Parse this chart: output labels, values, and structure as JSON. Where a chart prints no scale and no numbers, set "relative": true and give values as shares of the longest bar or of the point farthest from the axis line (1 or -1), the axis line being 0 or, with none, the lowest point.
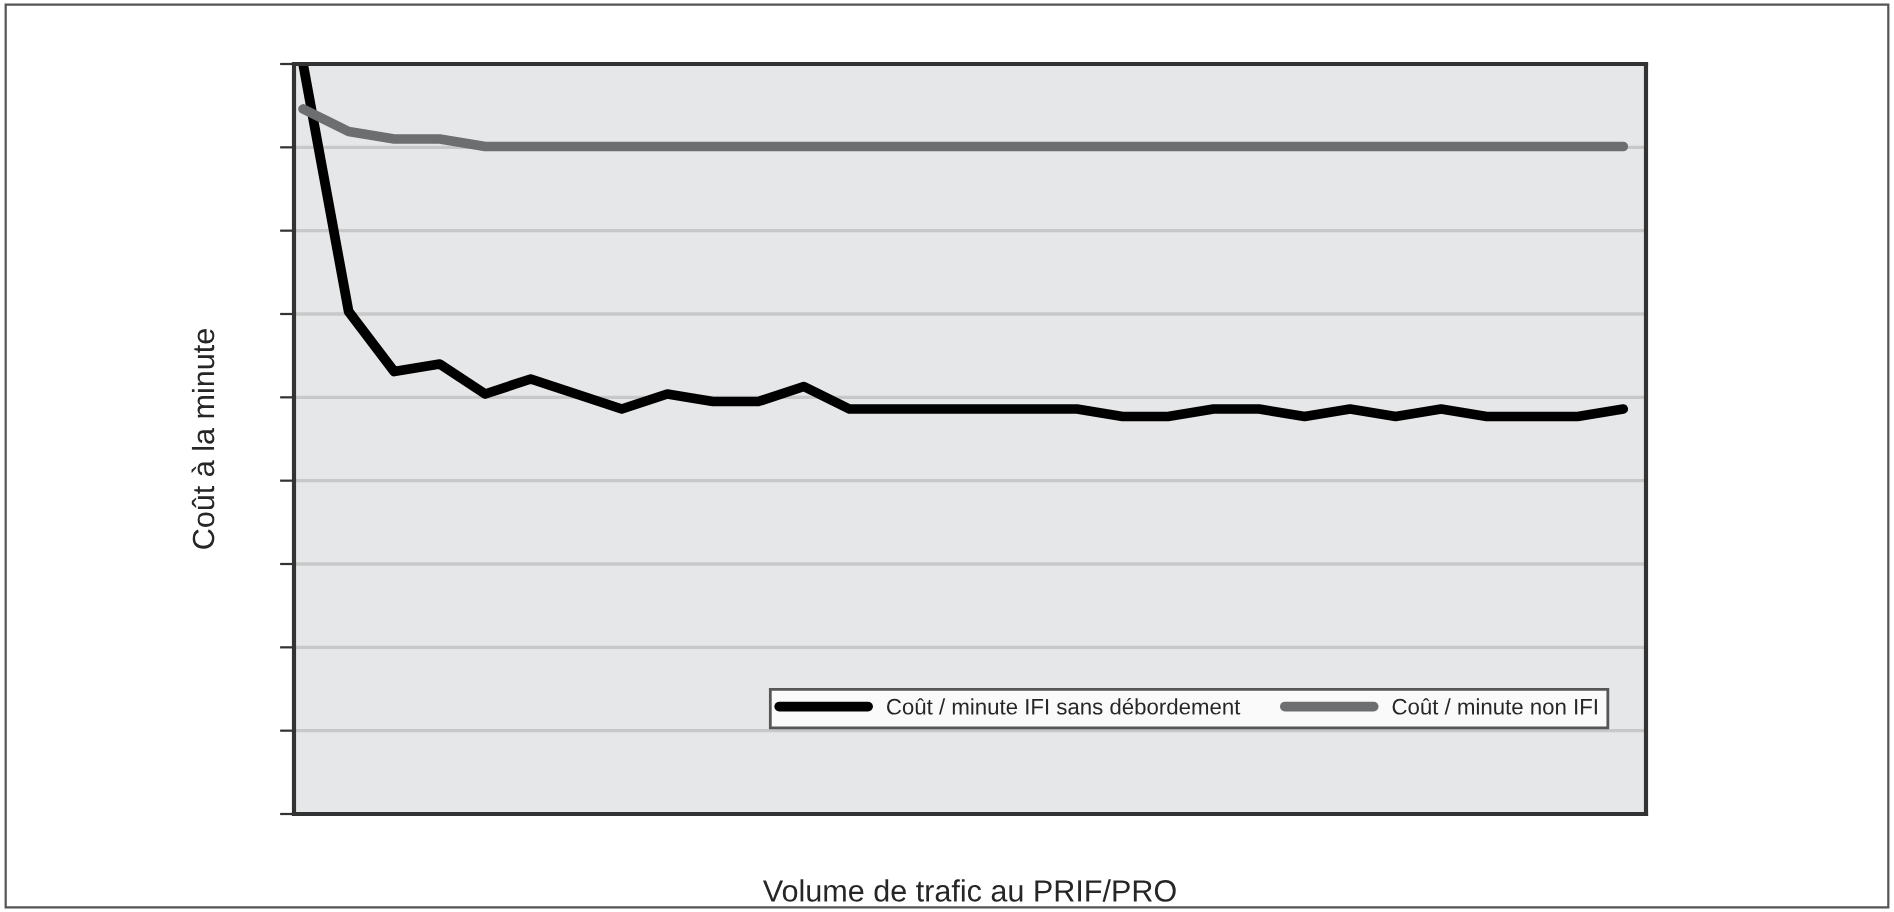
{
  "chart_data": {
    "type": "line",
    "relative": true,
    "xlabel": "Volume de trafic au PRIF/PRO",
    "ylabel": "Coût à la minute",
    "categories": [
      null,
      null,
      null,
      null,
      null,
      null,
      null,
      null,
      null,
      null,
      null,
      null,
      null,
      null,
      null,
      null,
      null,
      null,
      null,
      null,
      null,
      null,
      null,
      null,
      null,
      null,
      null,
      null,
      null,
      null
    ],
    "series": [
      {
        "name": "Coût / minute IFI sans débordement",
        "color": "#000000",
        "values": [
          1.0,
          0.67,
          0.59,
          0.6,
          0.56,
          0.58,
          0.56,
          0.54,
          0.56,
          0.55,
          0.55,
          0.57,
          0.54,
          0.54,
          0.54,
          0.54,
          0.54,
          0.54,
          0.53,
          0.53,
          0.54,
          0.54,
          0.53,
          0.54,
          0.53,
          0.54,
          0.53,
          0.53,
          0.53,
          0.54
        ]
      },
      {
        "name": "Coût / minute non IFI",
        "color": "#6d6e70",
        "values": [
          0.94,
          0.91,
          0.9,
          0.9,
          0.89,
          0.89,
          0.89,
          0.89,
          0.89,
          0.89,
          0.89,
          0.89,
          0.89,
          0.89,
          0.89,
          0.89,
          0.89,
          0.89,
          0.89,
          0.89,
          0.89,
          0.89,
          0.89,
          0.89,
          0.89,
          0.89,
          0.89,
          0.89,
          0.89,
          0.89
        ]
      }
    ],
    "grid": "y",
    "legend": "bottom right",
    "marker": "none",
    "line_style": "solid"
  }
}
